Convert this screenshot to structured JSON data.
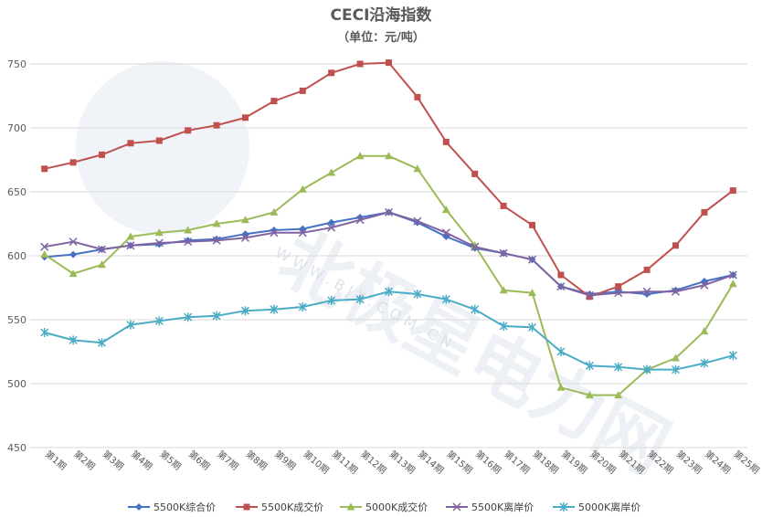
{
  "chart_data": {
    "type": "line",
    "title": "CECI沿海指数",
    "subtitle": "（单位：元/吨）",
    "ylim": [
      450,
      760
    ],
    "yticks": [
      450,
      500,
      550,
      600,
      650,
      700,
      750
    ],
    "grid": true,
    "legend_position": "bottom",
    "categories": [
      "第1期",
      "第2期",
      "第3期",
      "第4期",
      "第5期",
      "第6期",
      "第7期",
      "第8期",
      "第9期",
      "第10期",
      "第11期",
      "第12期",
      "第13期",
      "第14期",
      "第15期",
      "第16期",
      "第17期",
      "第18期",
      "第19期",
      "第20期",
      "第21期",
      "第22期",
      "第23期",
      "第24期",
      "第25期"
    ],
    "series": [
      {
        "name": "5500K综合价",
        "color": "#4472c4",
        "marker": "diamond",
        "values": [
          599,
          601,
          605,
          608,
          609,
          612,
          613,
          617,
          620,
          621,
          626,
          630,
          634,
          626,
          615,
          606,
          602,
          597,
          576,
          570,
          572,
          570,
          573,
          580,
          585
        ]
      },
      {
        "name": "5500K成交价",
        "color": "#c0504d",
        "marker": "square",
        "values": [
          668,
          673,
          679,
          688,
          690,
          698,
          702,
          708,
          721,
          729,
          743,
          750,
          751,
          724,
          689,
          664,
          639,
          624,
          585,
          568,
          576,
          589,
          608,
          634,
          651
        ]
      },
      {
        "name": "5000K成交价",
        "color": "#9bbb59",
        "marker": "triangle",
        "values": [
          601,
          586,
          593,
          615,
          618,
          620,
          625,
          628,
          634,
          652,
          665,
          678,
          678,
          668,
          636,
          608,
          573,
          571,
          497,
          491,
          491,
          511,
          520,
          541,
          578
        ]
      },
      {
        "name": "5500K离岸价",
        "color": "#8064a2",
        "marker": "x",
        "values": [
          607,
          611,
          605,
          608,
          610,
          611,
          612,
          614,
          618,
          618,
          622,
          628,
          634,
          627,
          618,
          607,
          602,
          597,
          576,
          569,
          571,
          572,
          572,
          577,
          585
        ]
      },
      {
        "name": "5000K离岸价",
        "color": "#4bacc6",
        "marker": "star",
        "values": [
          540,
          534,
          532,
          546,
          549,
          552,
          553,
          557,
          558,
          560,
          565,
          566,
          572,
          570,
          566,
          558,
          545,
          544,
          525,
          514,
          513,
          511,
          511,
          516,
          522
        ]
      }
    ]
  },
  "watermark": {
    "brand_text": "北极星电力网",
    "url_text": "W W W . B J X . C O M . C N"
  }
}
